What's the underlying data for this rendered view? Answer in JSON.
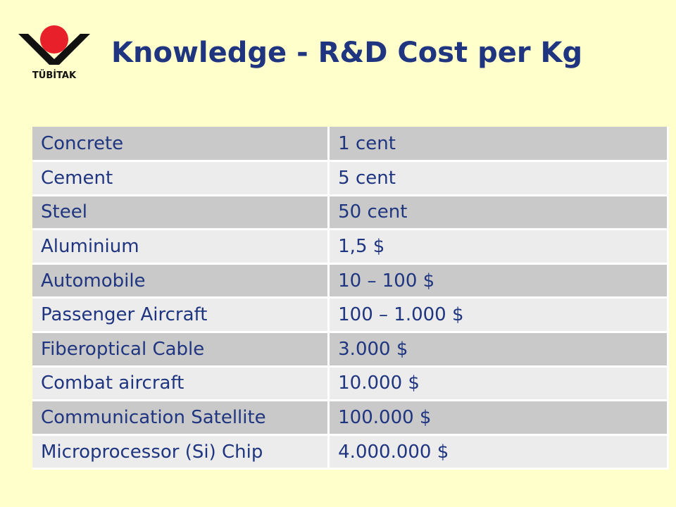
{
  "logo": {
    "text": "TÜBİTAK",
    "icon": "tubitak-logo-icon",
    "colors": {
      "circle": "#E8202A",
      "chevron": "#111111"
    }
  },
  "title": "Knowledge - R&D Cost per Kg",
  "table": {
    "rows": [
      {
        "item": "Concrete",
        "cost": "1 cent"
      },
      {
        "item": "Cement",
        "cost": "5 cent"
      },
      {
        "item": "Steel",
        "cost": "50  cent"
      },
      {
        "item": "Aluminium",
        "cost": "1,5 $"
      },
      {
        "item": "Automobile",
        "cost": "10 – 100 $"
      },
      {
        "item": "Passenger Aircraft",
        "cost": "100 – 1.000 $"
      },
      {
        "item": "Fiberoptical Cable",
        "cost": "3.000 $"
      },
      {
        "item": "Combat aircraft",
        "cost": "10.000 $"
      },
      {
        "item": "Communication Satellite",
        "cost": "100.000 $"
      },
      {
        "item": "Microprocessor (Si) Chip",
        "cost": "4.000.000 $"
      }
    ]
  },
  "colors": {
    "background": "#FFFFCC",
    "title": "#1F3580",
    "row_dark": "#C9C9C9",
    "row_light": "#ECECEC"
  }
}
